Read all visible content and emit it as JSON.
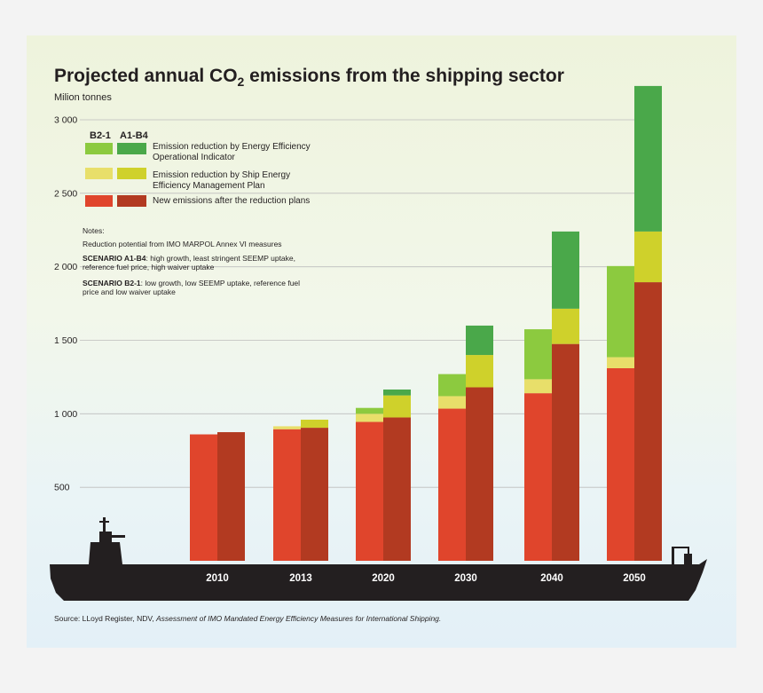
{
  "chart_data": {
    "type": "bar",
    "title": "Projected annual CO",
    "title_sub": "2",
    "title_tail": " emissions from the shipping sector",
    "unit_label": "Milion tonnes",
    "ylim": [
      0,
      3000
    ],
    "yticks": [
      {
        "value": 500,
        "label": "500"
      },
      {
        "value": 1000,
        "label": "1 000"
      },
      {
        "value": 1500,
        "label": "1 500"
      },
      {
        "value": 2000,
        "label": "2 000"
      },
      {
        "value": 2500,
        "label": "2 500"
      },
      {
        "value": 3000,
        "label": "3 000"
      }
    ],
    "categories": [
      "2010",
      "2013",
      "2020",
      "2030",
      "2040",
      "2050"
    ],
    "scenarios": [
      "B2-1",
      "A1-B4"
    ],
    "components": [
      {
        "key": "new",
        "label": "New emissions after the reduction plans"
      },
      {
        "key": "seemp",
        "label": "Emission reduction by Ship Energy Efficiency Management Plan"
      },
      {
        "key": "eeoi",
        "label": "Emission reduction by Energy Efficiency Operational Indicator"
      }
    ],
    "series": [
      {
        "name": "B2-1",
        "new": [
          860,
          895,
          945,
          1035,
          1140,
          1310
        ],
        "seemp": [
          0,
          20,
          55,
          85,
          95,
          75
        ],
        "eeoi": [
          0,
          0,
          40,
          150,
          340,
          620
        ]
      },
      {
        "name": "A1-B4",
        "new": [
          875,
          905,
          975,
          1180,
          1475,
          1895
        ],
        "seemp": [
          0,
          55,
          150,
          220,
          240,
          345
        ],
        "eeoi": [
          0,
          0,
          40,
          200,
          525,
          990
        ]
      }
    ],
    "colors": {
      "B2-1": {
        "new": "#e0452c",
        "seemp": "#e8df6a",
        "eeoi": "#8cca3f"
      },
      "A1-B4": {
        "new": "#b23a21",
        "seemp": "#cfd12b",
        "eeoi": "#4aa84a"
      }
    }
  },
  "legend": {
    "header_b21": "B2-1",
    "header_a1b4": "A1-B4",
    "eeoi_label_1": "Emission reduction by Energy Efficiency",
    "eeoi_label_2": "Operational Indicator",
    "seemp_label_1": "Emission reduction by Ship Energy",
    "seemp_label_2": "Efficiency Management Plan",
    "new_label": "New emissions after the reduction plans"
  },
  "notes": {
    "heading": "Notes:",
    "reduction": "Reduction potential from IMO MARPOL Annex VI  measures",
    "a1b4_bold": "SCENARIO A1-B4",
    "a1b4_text_1": ": high growth, least stringent SEEMP uptake,",
    "a1b4_text_2": "reference fuel price, high waiver uptake",
    "b21_bold": "SCENARIO B2-1",
    "b21_text_1": ": low growth, low SEEMP uptake, reference fuel",
    "b21_text_2": "price and low waiver uptake"
  },
  "source": {
    "prefix": "Source: LLoyd Register, NDV, ",
    "italic": "Assessment of IMO Mandated Energy Efficiency Measures for International Shipping."
  }
}
